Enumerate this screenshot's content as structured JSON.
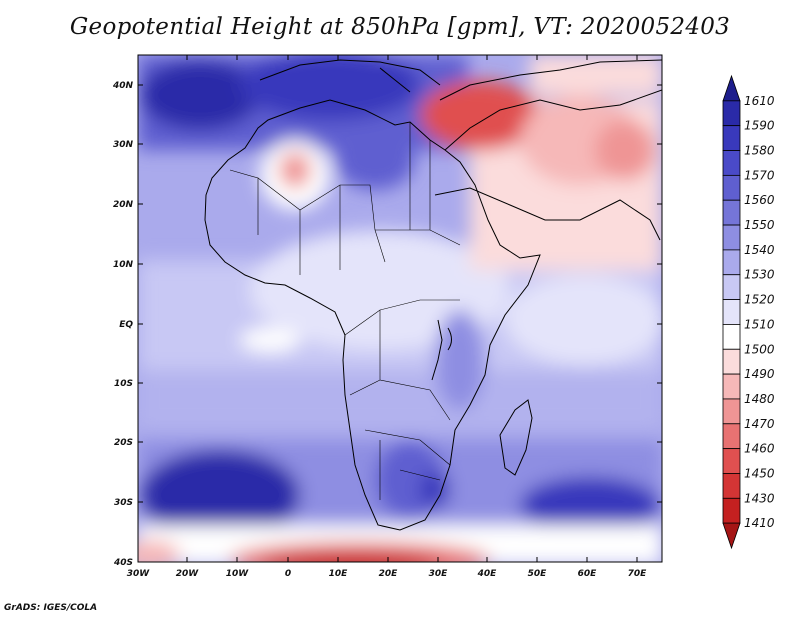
{
  "title": "Geopotential Height at 850hPa [gpm], VT: 2020052403",
  "credit": "GrADS: IGES/COLA",
  "map": {
    "lat_labels": [
      "40N",
      "30N",
      "20N",
      "10N",
      "EQ",
      "10S",
      "20S",
      "30S",
      "40S"
    ],
    "lon_labels": [
      "30W",
      "20W",
      "10W",
      "0",
      "10E",
      "20E",
      "30E",
      "40E",
      "50E",
      "60E",
      "70E"
    ]
  },
  "colorbar": {
    "levels": [
      "1610",
      "1590",
      "1580",
      "1570",
      "1560",
      "1550",
      "1540",
      "1530",
      "1520",
      "1510",
      "1500",
      "1490",
      "1480",
      "1470",
      "1460",
      "1450",
      "1430",
      "1410"
    ],
    "colors": [
      "#1d1d8c",
      "#2a2aa8",
      "#3939bc",
      "#4a4ac8",
      "#5f5fd0",
      "#7575d8",
      "#8e8ee2",
      "#aaaaec",
      "#c8c8f4",
      "#e4e4fa",
      "#ffffff",
      "#fbdcdc",
      "#f6b8b8",
      "#ef9595",
      "#e87272",
      "#e05050",
      "#d43535",
      "#c42020",
      "#a51515"
    ]
  }
}
